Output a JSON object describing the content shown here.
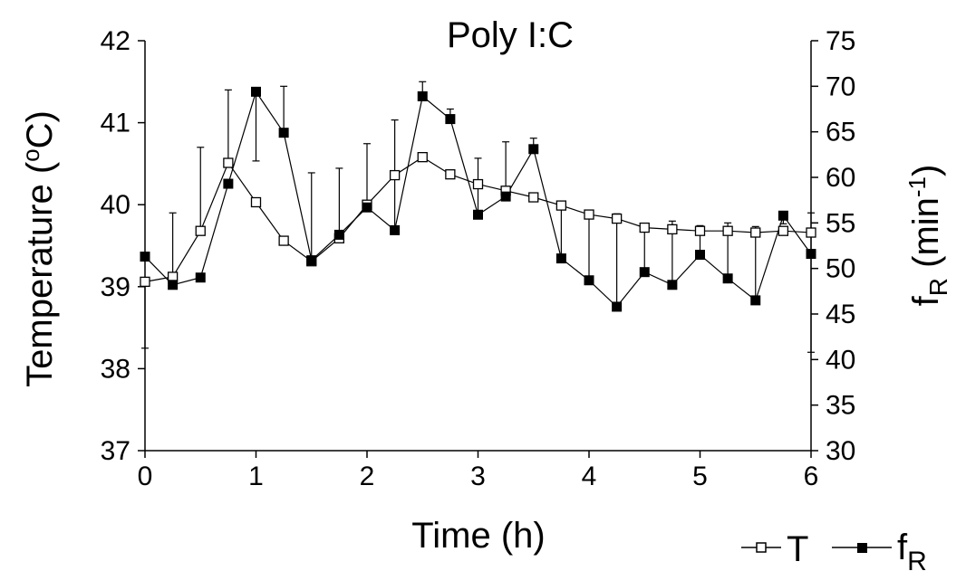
{
  "chart_data": {
    "type": "line",
    "title": "Poly I:C",
    "xlabel": "Time (h)",
    "ylabel_left": "Temperature (oC)",
    "ylabel_left_parts": {
      "base": "Temperature (",
      "sup": "o",
      "tail": "C)"
    },
    "ylabel_right": "fR (min-1)",
    "ylabel_right_parts": {
      "f": "f",
      "sub": "R",
      "mid": " (min",
      "sup": "-1",
      "tail": ")"
    },
    "xlim": [
      0,
      6
    ],
    "ylim_left": [
      37,
      42
    ],
    "ylim_right": [
      30,
      75
    ],
    "x_ticks": [
      0,
      1,
      2,
      3,
      4,
      5,
      6
    ],
    "x_tick_labels": [
      "0",
      "1",
      "2",
      "3",
      "4",
      "5",
      "6"
    ],
    "y_left_ticks": [
      37,
      38,
      39,
      40,
      41,
      42
    ],
    "y_left_tick_labels": [
      "37",
      "38",
      "39",
      "40",
      "41",
      "42"
    ],
    "y_right_ticks": [
      30,
      35,
      40,
      45,
      50,
      55,
      60,
      65,
      70,
      75
    ],
    "y_right_tick_labels": [
      "30",
      "35",
      "40",
      "45",
      "50",
      "55",
      "60",
      "65",
      "70",
      "75"
    ],
    "grid": false,
    "legend_position": "bottom-right",
    "x": [
      0,
      0.25,
      0.5,
      0.75,
      1,
      1.25,
      1.5,
      1.75,
      2,
      2.25,
      2.5,
      2.75,
      3,
      3.25,
      3.5,
      3.75,
      4,
      4.25,
      4.5,
      4.75,
      5,
      5.25,
      5.5,
      5.75,
      6
    ],
    "series": [
      {
        "name": "T",
        "legend_label": "T",
        "axis": "left",
        "marker": "open-square",
        "values": [
          39.06,
          39.12,
          39.68,
          40.51,
          40.03,
          39.56,
          39.31,
          39.59,
          40.0,
          40.36,
          40.58,
          40.37,
          40.25,
          40.17,
          40.09,
          39.99,
          39.88,
          39.83,
          39.72,
          39.7,
          39.68,
          39.68,
          39.66,
          39.68,
          39.66
        ],
        "error_upper": [
          null,
          39.9,
          40.7,
          41.4,
          null,
          null,
          null,
          null,
          null,
          null,
          null,
          null,
          null,
          null,
          null,
          null,
          null,
          null,
          null,
          null,
          null,
          null,
          null,
          null,
          39.9
        ],
        "error_lower": [
          38.25,
          null,
          null,
          null,
          null,
          null,
          null,
          null,
          null,
          null,
          null,
          null,
          null,
          null,
          null,
          null,
          null,
          null,
          null,
          null,
          null,
          null,
          null,
          null,
          38.2
        ]
      },
      {
        "name": "fR",
        "legend_label": "f",
        "legend_sub": "R",
        "axis": "right",
        "marker": "filled-square",
        "values": [
          51.3,
          48.2,
          49.0,
          59.3,
          69.4,
          64.9,
          50.9,
          53.7,
          56.7,
          54.2,
          68.9,
          66.4,
          55.9,
          57.9,
          63.1,
          51.1,
          48.7,
          45.8,
          49.6,
          48.2,
          51.5,
          48.9,
          46.5,
          55.8,
          51.6
        ],
        "error_upper": [
          null,
          null,
          null,
          null,
          61.8,
          70.0,
          60.5,
          61.0,
          63.7,
          66.3,
          70.5,
          67.5,
          62.1,
          63.9,
          64.3,
          57.1,
          56.0,
          56.0,
          54.9,
          55.2,
          54.7,
          55.0,
          54.6,
          54.9,
          null
        ],
        "error_lower": [
          null,
          null,
          null,
          null,
          null,
          null,
          null,
          null,
          null,
          null,
          null,
          null,
          null,
          null,
          null,
          null,
          null,
          null,
          null,
          null,
          null,
          null,
          null,
          null,
          null
        ]
      }
    ]
  }
}
